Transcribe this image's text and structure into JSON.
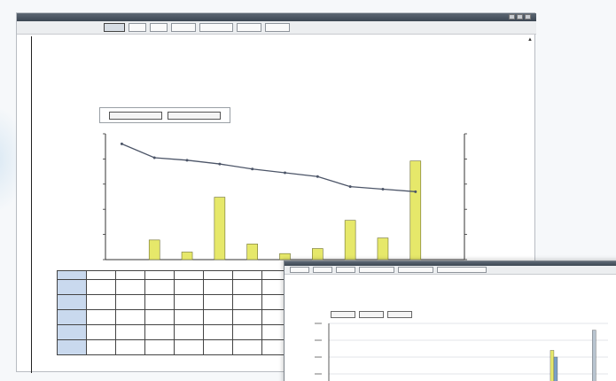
{
  "main_window": {
    "toolbar": [
      "",
      "",
      "",
      "",
      "",
      "",
      ""
    ],
    "doc_title": "",
    "heading_1": "",
    "heading_1_sub": "",
    "heading_2": "",
    "legend": [
      "",
      ""
    ],
    "table_header_row": [
      "",
      "",
      "",
      "",
      "",
      "",
      "",
      "",
      ""
    ],
    "table_rows": [
      {
        "label": "",
        "cells": [
          "",
          "",
          "",
          "",
          "",
          "",
          "",
          "",
          ""
        ]
      },
      {
        "label": "",
        "cells": [
          "",
          "",
          "",
          "",
          "",
          "",
          "",
          "",
          ""
        ]
      },
      {
        "label": "",
        "cells": [
          "",
          "",
          "",
          "",
          "",
          "",
          "",
          "",
          ""
        ]
      },
      {
        "label": "",
        "cells": [
          "",
          "",
          "",
          "",
          "",
          "",
          "",
          "",
          ""
        ]
      },
      {
        "label": "",
        "cells": [
          "",
          "",
          "",
          "",
          "",
          "",
          "",
          "",
          ""
        ]
      }
    ],
    "footer": ""
  },
  "popup_window": {
    "toolbar": [
      "",
      "",
      "",
      "",
      "",
      ""
    ],
    "doc_title": "",
    "heading_1": "",
    "heading_1_sub": "",
    "heading_2": "",
    "legend": [
      "",
      "",
      ""
    ]
  },
  "chart_data": [
    {
      "type": "bar",
      "title": "",
      "categories": [
        "",
        "",
        "",
        "",
        "",
        "",
        "",
        "",
        "",
        "",
        ""
      ],
      "series": [
        {
          "name": "",
          "type": "bar",
          "axis": "left",
          "color": "#e6e86a",
          "values": [
            0,
            3900,
            1500,
            12400,
            3100,
            1200,
            2200,
            7800,
            4300,
            19600,
            0
          ]
        },
        {
          "name": "",
          "type": "line",
          "axis": "right",
          "color": "#4c5568",
          "values": [
            92,
            81,
            79,
            76,
            72,
            69,
            66,
            58,
            56,
            54,
            0
          ]
        }
      ],
      "ylim_left": [
        0,
        25000
      ],
      "ylim_right": [
        0,
        100
      ],
      "grid": false,
      "legend_position": "top-left"
    },
    {
      "type": "bar",
      "title": "",
      "categories": [
        "",
        "",
        "",
        "",
        "",
        "",
        "",
        ""
      ],
      "series": [
        {
          "name": "",
          "color": "#e6e86a",
          "values": [
            0,
            0,
            0,
            0,
            0,
            0,
            6,
            0
          ]
        },
        {
          "name": "",
          "color": "#7aa0c8",
          "values": [
            0,
            0,
            0,
            0,
            0,
            0,
            5,
            0
          ]
        },
        {
          "name": "",
          "color": "#b8c4d0",
          "values": [
            0,
            0,
            0,
            0,
            0,
            0,
            0,
            9
          ]
        }
      ],
      "grid": true
    }
  ]
}
